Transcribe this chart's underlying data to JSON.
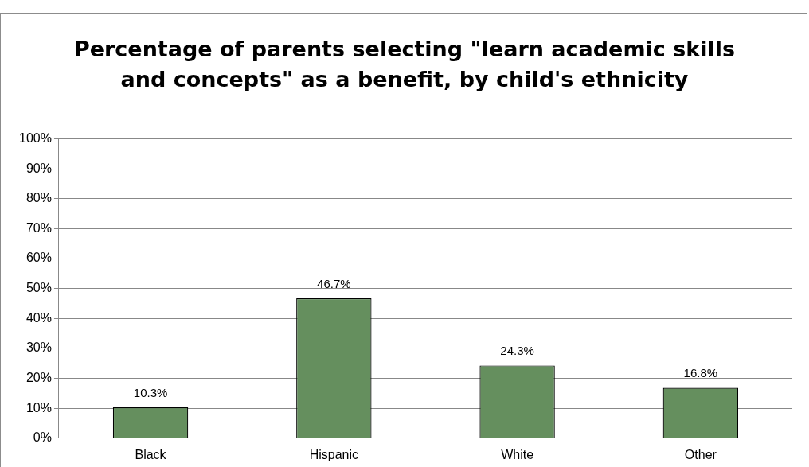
{
  "chart_data": {
    "type": "bar",
    "title": "Percentage of parents selecting \"learn academic skills and concepts\" as a benefit, by child's ethnicity",
    "categories": [
      "Black",
      "Hispanic",
      "White",
      "Other"
    ],
    "values": [
      10.3,
      46.7,
      24.3,
      16.8
    ],
    "value_labels": [
      "10.3%",
      "46.7%",
      "24.3%",
      "16.8%"
    ],
    "color": "#658f5e",
    "ylim": [
      0,
      100
    ],
    "yticks": [
      {
        "value": 0,
        "label": "0%"
      },
      {
        "value": 10,
        "label": "10%"
      },
      {
        "value": 20,
        "label": "20%"
      },
      {
        "value": 30,
        "label": "30%"
      },
      {
        "value": 40,
        "label": "40%"
      },
      {
        "value": 50,
        "label": "50%"
      },
      {
        "value": 60,
        "label": "60%"
      },
      {
        "value": 70,
        "label": "70%"
      },
      {
        "value": 80,
        "label": "80%"
      },
      {
        "value": 90,
        "label": "90%"
      },
      {
        "value": 100,
        "label": "100%"
      }
    ],
    "grid": "y",
    "legend": false
  }
}
